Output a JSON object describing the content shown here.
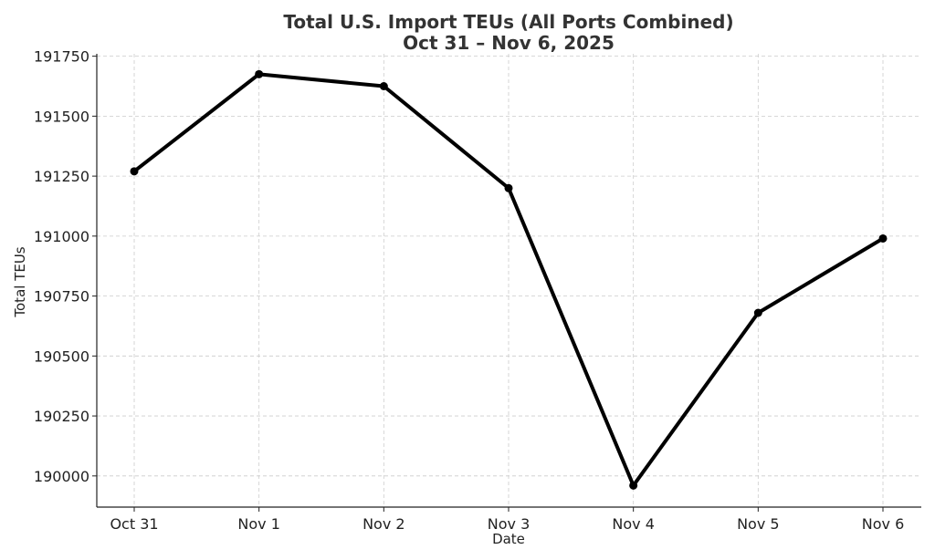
{
  "chart_data": {
    "type": "line",
    "title": "Total U.S. Import TEUs (All Ports Combined)",
    "subtitle": "Oct 31 – Nov 6, 2025",
    "xlabel": "Date",
    "ylabel": "Total TEUs",
    "categories": [
      "Oct 31",
      "Nov 1",
      "Nov 2",
      "Nov 3",
      "Nov 4",
      "Nov 5",
      "Nov 6"
    ],
    "series": [
      {
        "values": [
          191270,
          191675,
          191625,
          191200,
          189960,
          190680,
          190990
        ]
      }
    ],
    "ylim": [
      189870,
      191760
    ],
    "yticks": [
      190000,
      190250,
      190500,
      190750,
      191000,
      191250,
      191500,
      191750
    ],
    "grid": true,
    "line_color": "#000000"
  }
}
